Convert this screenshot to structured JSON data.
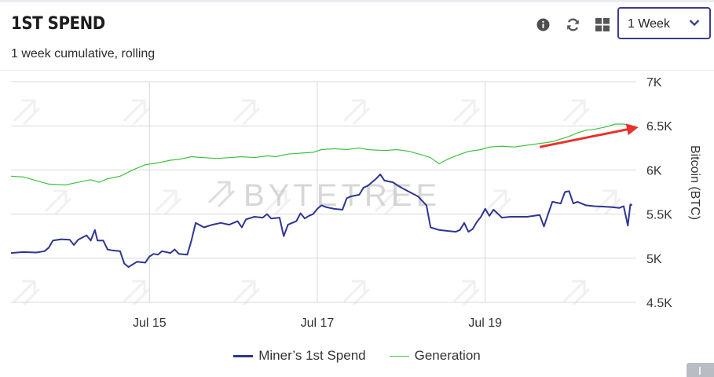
{
  "header": {
    "title": "1ST SPEND",
    "subtitle": "1 week cumulative, rolling",
    "icons": [
      "info-icon",
      "refresh-icon",
      "grid-icon"
    ],
    "range_select": {
      "value": "1 Week"
    }
  },
  "watermark": "BYTETREE",
  "colors": {
    "spend": "#2e3592",
    "generation": "#3ec23e",
    "annotation_arrow": "#e8312c",
    "select_border": "#3a3d8f"
  },
  "legend": {
    "spend_label": "Miner’s 1st Spend",
    "generation_label": "Generation"
  },
  "chart_data": {
    "type": "line",
    "x_unit": "day of July",
    "xlim": [
      13.35,
      20.8
    ],
    "x_ticks": [
      {
        "value": 15,
        "label": "Jul 15"
      },
      {
        "value": 17,
        "label": "Jul 17"
      },
      {
        "value": 19,
        "label": "Jul 19"
      }
    ],
    "ylabel": "Bitcoin (BTC)",
    "ylim": [
      4500,
      7000
    ],
    "y_ticks": [
      {
        "value": 4500,
        "label": "4.5K"
      },
      {
        "value": 5000,
        "label": "5K"
      },
      {
        "value": 5500,
        "label": "5.5K"
      },
      {
        "value": 6000,
        "label": "6K"
      },
      {
        "value": 6500,
        "label": "6.5K"
      },
      {
        "value": 7000,
        "label": "7K"
      }
    ],
    "y_axis_position": "right",
    "grid": true,
    "legend_position": "bottom",
    "series": [
      {
        "name": "Miner’s 1st Spend",
        "color": "#2e3592",
        "points": [
          [
            13.35,
            5060
          ],
          [
            13.5,
            5070
          ],
          [
            13.65,
            5065
          ],
          [
            13.75,
            5080
          ],
          [
            13.8,
            5120
          ],
          [
            13.85,
            5200
          ],
          [
            13.95,
            5215
          ],
          [
            14.05,
            5210
          ],
          [
            14.1,
            5150
          ],
          [
            14.15,
            5210
          ],
          [
            14.25,
            5260
          ],
          [
            14.3,
            5200
          ],
          [
            14.35,
            5320
          ],
          [
            14.38,
            5200
          ],
          [
            14.45,
            5200
          ],
          [
            14.5,
            5100
          ],
          [
            14.55,
            5090
          ],
          [
            14.65,
            5080
          ],
          [
            14.7,
            4940
          ],
          [
            14.75,
            4900
          ],
          [
            14.85,
            4960
          ],
          [
            14.95,
            4950
          ],
          [
            15.0,
            5020
          ],
          [
            15.05,
            5050
          ],
          [
            15.1,
            5040
          ],
          [
            15.15,
            5080
          ],
          [
            15.25,
            5060
          ],
          [
            15.3,
            5100
          ],
          [
            15.35,
            5050
          ],
          [
            15.45,
            5040
          ],
          [
            15.5,
            5200
          ],
          [
            15.55,
            5400
          ],
          [
            15.65,
            5350
          ],
          [
            15.75,
            5380
          ],
          [
            15.85,
            5400
          ],
          [
            15.95,
            5380
          ],
          [
            16.05,
            5420
          ],
          [
            16.1,
            5350
          ],
          [
            16.15,
            5440
          ],
          [
            16.25,
            5470
          ],
          [
            16.35,
            5460
          ],
          [
            16.4,
            5500
          ],
          [
            16.45,
            5450
          ],
          [
            16.55,
            5460
          ],
          [
            16.6,
            5250
          ],
          [
            16.65,
            5380
          ],
          [
            16.75,
            5420
          ],
          [
            16.8,
            5510
          ],
          [
            16.85,
            5450
          ],
          [
            16.9,
            5480
          ],
          [
            16.95,
            5500
          ],
          [
            17.0,
            5560
          ],
          [
            17.05,
            5600
          ],
          [
            17.1,
            5580
          ],
          [
            17.2,
            5560
          ],
          [
            17.3,
            5550
          ],
          [
            17.35,
            5680
          ],
          [
            17.4,
            5700
          ],
          [
            17.5,
            5720
          ],
          [
            17.55,
            5800
          ],
          [
            17.6,
            5820
          ],
          [
            17.7,
            5900
          ],
          [
            17.75,
            5950
          ],
          [
            17.8,
            5880
          ],
          [
            17.9,
            5860
          ],
          [
            18.0,
            5800
          ],
          [
            18.1,
            5750
          ],
          [
            18.2,
            5700
          ],
          [
            18.3,
            5600
          ],
          [
            18.35,
            5350
          ],
          [
            18.45,
            5320
          ],
          [
            18.55,
            5310
          ],
          [
            18.65,
            5300
          ],
          [
            18.7,
            5320
          ],
          [
            18.75,
            5400
          ],
          [
            18.8,
            5300
          ],
          [
            18.85,
            5330
          ],
          [
            18.9,
            5410
          ],
          [
            18.95,
            5470
          ],
          [
            19.0,
            5560
          ],
          [
            19.05,
            5480
          ],
          [
            19.1,
            5550
          ],
          [
            19.2,
            5460
          ],
          [
            19.3,
            5470
          ],
          [
            19.5,
            5470
          ],
          [
            19.65,
            5490
          ],
          [
            19.7,
            5360
          ],
          [
            19.75,
            5500
          ],
          [
            19.8,
            5640
          ],
          [
            19.9,
            5620
          ],
          [
            19.95,
            5750
          ],
          [
            20.0,
            5760
          ],
          [
            20.05,
            5620
          ],
          [
            20.1,
            5640
          ],
          [
            20.2,
            5600
          ],
          [
            20.3,
            5590
          ],
          [
            20.5,
            5580
          ],
          [
            20.6,
            5570
          ],
          [
            20.65,
            5590
          ],
          [
            20.7,
            5370
          ],
          [
            20.73,
            5610
          ],
          [
            20.75,
            5600
          ]
        ]
      },
      {
        "name": "Generation",
        "color": "#3ec23e",
        "points": [
          [
            13.35,
            5930
          ],
          [
            13.5,
            5920
          ],
          [
            13.65,
            5880
          ],
          [
            13.8,
            5840
          ],
          [
            14.0,
            5830
          ],
          [
            14.15,
            5860
          ],
          [
            14.3,
            5890
          ],
          [
            14.4,
            5860
          ],
          [
            14.5,
            5900
          ],
          [
            14.65,
            5930
          ],
          [
            14.8,
            6000
          ],
          [
            14.95,
            6060
          ],
          [
            15.1,
            6080
          ],
          [
            15.25,
            6110
          ],
          [
            15.35,
            6120
          ],
          [
            15.5,
            6150
          ],
          [
            15.65,
            6140
          ],
          [
            15.8,
            6130
          ],
          [
            15.95,
            6140
          ],
          [
            16.1,
            6150
          ],
          [
            16.25,
            6140
          ],
          [
            16.4,
            6160
          ],
          [
            16.5,
            6150
          ],
          [
            16.65,
            6180
          ],
          [
            16.8,
            6190
          ],
          [
            16.95,
            6200
          ],
          [
            17.05,
            6230
          ],
          [
            17.2,
            6240
          ],
          [
            17.35,
            6230
          ],
          [
            17.5,
            6250
          ],
          [
            17.6,
            6230
          ],
          [
            17.8,
            6220
          ],
          [
            17.95,
            6230
          ],
          [
            18.1,
            6210
          ],
          [
            18.25,
            6170
          ],
          [
            18.35,
            6140
          ],
          [
            18.45,
            6070
          ],
          [
            18.55,
            6120
          ],
          [
            18.65,
            6160
          ],
          [
            18.8,
            6210
          ],
          [
            18.95,
            6230
          ],
          [
            19.05,
            6260
          ],
          [
            19.2,
            6270
          ],
          [
            19.35,
            6260
          ],
          [
            19.5,
            6280
          ],
          [
            19.65,
            6300
          ],
          [
            19.8,
            6320
          ],
          [
            19.9,
            6350
          ],
          [
            20.0,
            6380
          ],
          [
            20.1,
            6420
          ],
          [
            20.2,
            6450
          ],
          [
            20.3,
            6460
          ],
          [
            20.45,
            6490
          ],
          [
            20.55,
            6520
          ],
          [
            20.65,
            6520
          ],
          [
            20.75,
            6500
          ]
        ]
      }
    ],
    "annotation": {
      "type": "arrow",
      "color": "#e8312c",
      "from": [
        19.65,
        6260
      ],
      "to": [
        20.8,
        6480
      ]
    }
  }
}
